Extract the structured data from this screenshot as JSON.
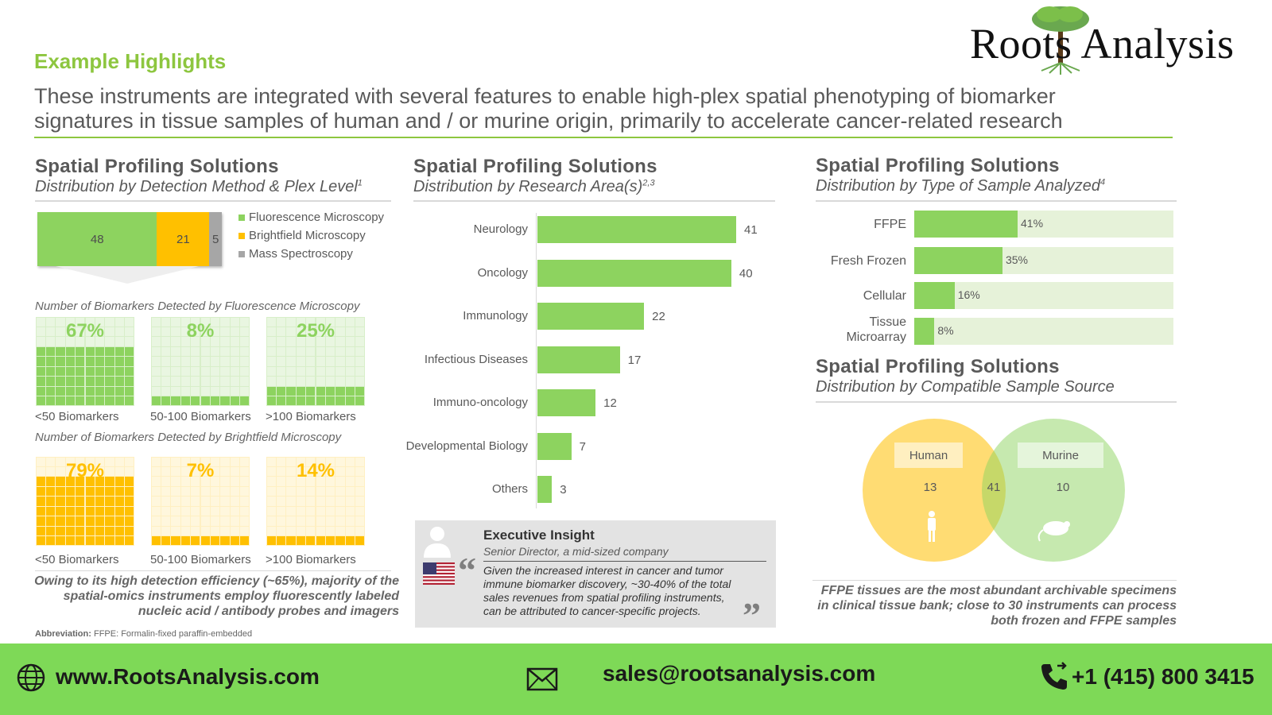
{
  "header": {
    "section_title": "Example Highlights",
    "headline_line1": "These instruments are integrated with several features to enable high-plex spatial phenotyping of biomarker",
    "headline_line2": "signatures in tissue samples of human and / or murine origin, primarily to accelerate cancer-related research",
    "logo_text": "Roots Analysis"
  },
  "panel_left": {
    "title": "Spatial Profiling Solutions",
    "subtitle": "Distribution by Detection Method & Plex Level",
    "subtitle_sup": "1",
    "legend": [
      "Fluorescence Microscopy",
      "Brightfield Microscopy",
      "Mass Spectroscopy"
    ],
    "fluor_caption": "Number of Biomarkers Detected by Fluorescence Microscopy",
    "bright_caption": "Number of Biomarkers Detected by Brightfield Microscopy",
    "grid_labels": [
      "<50 Biomarkers",
      "50-100 Biomarkers",
      ">100 Biomarkers"
    ],
    "note_line1": "Owing to its high detection efficiency (~65%), majority of the",
    "note_line2": "spatial-omics instruments  employ fluorescently  labeled",
    "note_line3": "nucleic acid / antibody probes and imagers",
    "abbreviation_label": "Abbreviation:",
    "abbreviation_text": "FFPE: Formalin-fixed paraffin-embedded"
  },
  "panel_middle": {
    "title": "Spatial Profiling Solutions",
    "subtitle": "Distribution by Research Area(s)",
    "subtitle_sup": "2,3"
  },
  "insight": {
    "title": "Executive Insight",
    "role": "Senior Director, a mid-sized company",
    "quote_line1": "Given the increased interest in cancer and tumor",
    "quote_line2": "immune biomarker discovery, ~30-40% of the  total",
    "quote_line3": "sales revenues from spatial profiling instruments,",
    "quote_line4": "can be attributed to cancer-specific projects."
  },
  "panel_right": {
    "title": "Spatial Profiling Solutions",
    "subtitle": "Distribution by Type of Sample Analyzed",
    "subtitle_sup": "4",
    "title2": "Spatial Profiling Solutions",
    "subtitle2": "Distribution by Compatible Sample Source",
    "venn": {
      "left_label": "Human",
      "right_label": "Murine",
      "left_value": "13",
      "overlap_value": "41",
      "right_value": "10"
    },
    "note_line1": "FFPE tissues  are the most abundant archivable specimens",
    "note_line2": "in clinical tissue  bank; close to 30 instruments  can process",
    "note_line3": "both frozen and FFPE samples"
  },
  "footer": {
    "website": "www.RootsAnalysis.com",
    "email": "sales@rootsanalysis.com",
    "phone": "+1 (415) 800 3415"
  },
  "colors": {
    "green": "#8dd35f",
    "yellow": "#ffc000",
    "grey": "#a6a6a6",
    "footer": "#7ed957",
    "title_green": "#8dc63f"
  },
  "chart_data": [
    {
      "type": "bar",
      "orientation": "horizontal-stacked",
      "series": [
        {
          "name": "Fluorescence Microscopy",
          "values": [
            48
          ]
        },
        {
          "name": "Brightfield Microscopy",
          "values": [
            21
          ]
        },
        {
          "name": "Mass Spectroscopy",
          "values": [
            5
          ]
        }
      ]
    },
    {
      "type": "bar",
      "group": "Fluorescence Microscopy",
      "categories": [
        "<50 Biomarkers",
        "50-100 Biomarkers",
        ">100 Biomarkers"
      ],
      "values": [
        67,
        8,
        25
      ],
      "value_labels": [
        "67%",
        "8%",
        "25%"
      ]
    },
    {
      "type": "bar",
      "group": "Brightfield Microscopy",
      "categories": [
        "<50 Biomarkers",
        "50-100 Biomarkers",
        ">100 Biomarkers"
      ],
      "values": [
        79,
        7,
        14
      ],
      "value_labels": [
        "79%",
        "7%",
        "14%"
      ]
    },
    {
      "type": "bar",
      "orientation": "horizontal",
      "categories": [
        "Neurology",
        "Oncology",
        "Immunology",
        "Infectious Diseases",
        "Immuno-oncology",
        "Developmental Biology",
        "Others"
      ],
      "values": [
        41,
        40,
        22,
        17,
        12,
        7,
        3
      ]
    },
    {
      "type": "bar",
      "orientation": "horizontal",
      "categories": [
        "FFPE",
        "Fresh Frozen",
        "Cellular",
        "Tissue Microarray"
      ],
      "values": [
        41,
        35,
        16,
        8
      ],
      "value_labels": [
        "41%",
        "35%",
        "16%",
        "8%"
      ]
    }
  ]
}
